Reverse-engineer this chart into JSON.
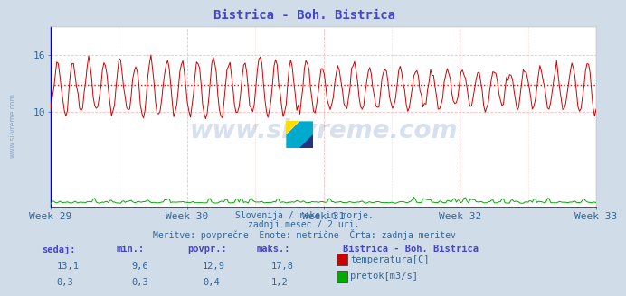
{
  "title": "Bistrica - Boh. Bistrica",
  "title_color": "#4444cc",
  "bg_color": "#d0dce8",
  "plot_bg_color": "#ffffff",
  "x_labels": [
    "Week 29",
    "Week 30",
    "Week 31",
    "Week 32",
    "Week 33"
  ],
  "x_label_color": "#336699",
  "y_min": 0,
  "y_max": 19.0,
  "y_ticks": [
    10,
    16
  ],
  "temp_color": "#cc0000",
  "flow_color": "#00aa00",
  "avg_line_color": "#cc0000",
  "avg_value": 12.9,
  "temp_min": 9.6,
  "temp_max": 17.8,
  "temp_current": 13.1,
  "temp_avg": 12.9,
  "flow_min": 0.3,
  "flow_max": 1.2,
  "flow_current": 0.3,
  "flow_avg": 0.4,
  "footer_line1": "Slovenija / reke in morje.",
  "footer_line2": "zadnji mesec / 2 uri.",
  "footer_line3": "Meritve: povprečne  Enote: metrične  Črta: zadnja meritev",
  "footer_color": "#336699",
  "grid_color_v": "#ffaaaa",
  "grid_color_h": "#ffaaaa",
  "watermark": "www.si-vreme.com",
  "left_label": "www.si-vreme.com",
  "n_points": 360,
  "axis_color": "#4444aa",
  "spine_color": "#0000cc"
}
